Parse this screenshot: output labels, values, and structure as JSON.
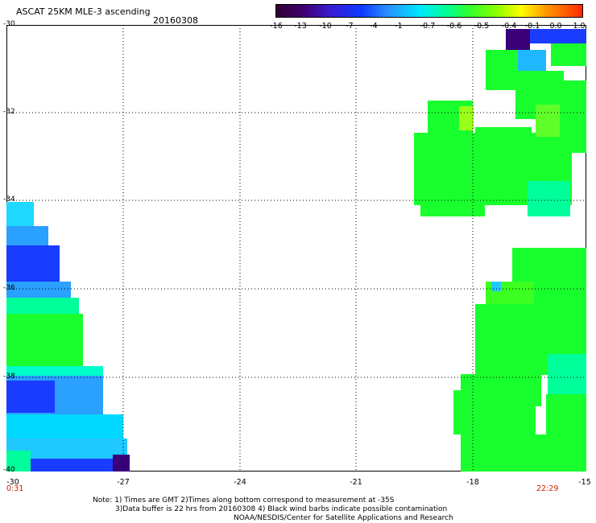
{
  "header": {
    "title": "ASCAT 25KM MLE-3 ascending",
    "date": "20160308"
  },
  "colorbar": {
    "ticks": [
      "-16",
      "-13",
      "-10",
      "-7",
      "-4",
      "-1",
      "-0.7",
      "-0.6",
      "-0.5",
      "-0.4",
      "-0.1",
      "0.0",
      "1.0"
    ]
  },
  "map": {
    "lat_labels": [
      "-30",
      "-32",
      "-34",
      "-36",
      "-38",
      "-40"
    ],
    "lon_labels": [
      "-30",
      "-27",
      "-24",
      "-21",
      "-18",
      "-15"
    ],
    "time_left": "0:31",
    "time_right": "22:29",
    "colors": {
      "dark_purple": "#3a0078",
      "blue": "#1a3cff",
      "light_blue": "#2aa0ff",
      "cyan": "#00e8ff",
      "aqua_green": "#00ff9a",
      "green": "#19ff2e",
      "yellow_green": "#9cff1a"
    }
  },
  "footer": {
    "note_line1": "Note: 1) Times are GMT 2)Times along bottom correspond to measurement at -35S",
    "note_line2": "3)Data buffer is 22 hrs from 20160308 4) Black wind barbs indicate possible contamination",
    "credit": "NOAA/NESDIS/Center for Satellite Applications and Research"
  }
}
